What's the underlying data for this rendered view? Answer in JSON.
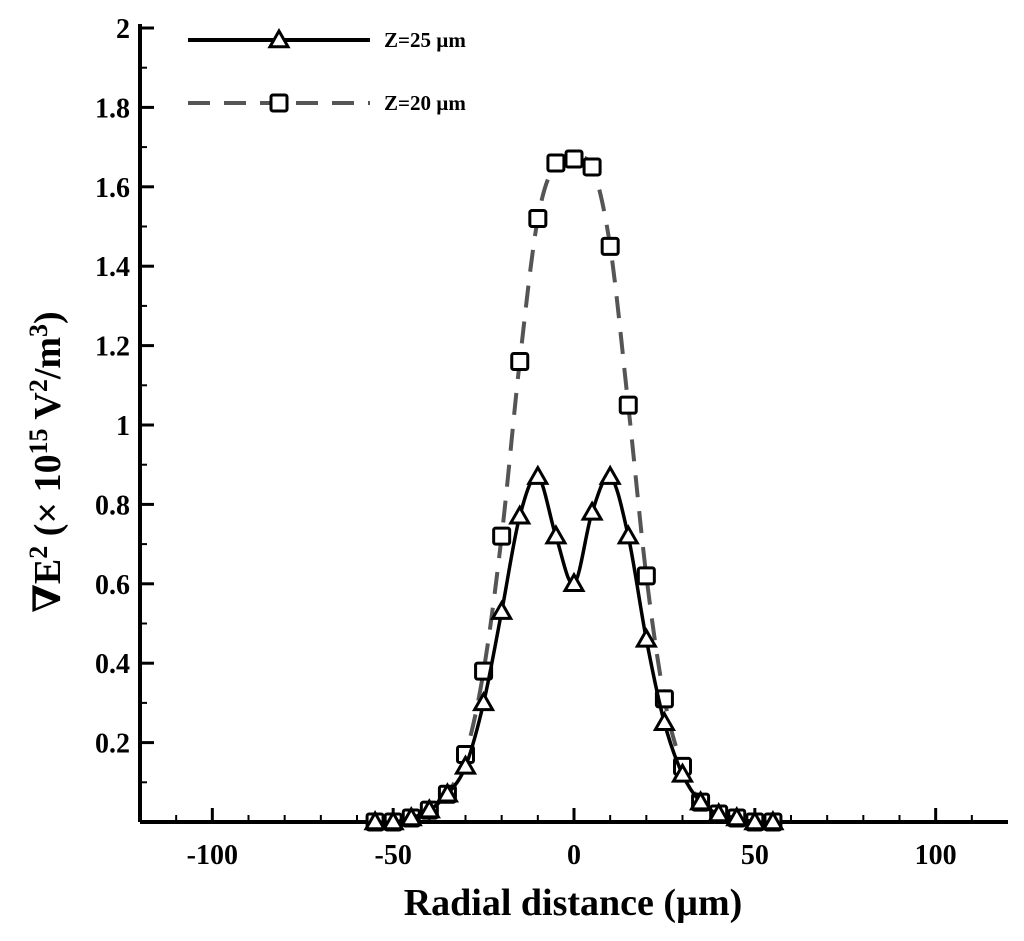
{
  "chart_data": {
    "type": "line",
    "xlabel": "Radial distance (µm)",
    "ylabel": {
      "base": "∇E",
      "base_sup": "2",
      "mid": " (× 10",
      "mid_sup": "15",
      "unit": " V",
      "unit_sup": "2",
      "unit_tail": "/m",
      "tail_sup": "3",
      "close": ")"
    },
    "xlim": [
      -120,
      120
    ],
    "ylim": [
      0,
      2
    ],
    "x_ticks": [
      -100,
      -50,
      0,
      50,
      100
    ],
    "x_tick_labels": [
      "-100",
      "-50",
      "0",
      "50",
      "100"
    ],
    "y_ticks": [
      0.2,
      0.4,
      0.6,
      0.8,
      1,
      1.2,
      1.4,
      1.6,
      1.8,
      2
    ],
    "y_tick_labels": [
      "0.2",
      "0.4",
      "0.6",
      "0.8",
      "1",
      "1.2",
      "1.4",
      "1.6",
      "1.8",
      "2"
    ],
    "grid": false,
    "legend_position": "top-left",
    "series": [
      {
        "name": "Z=25 µm",
        "line_style": "solid",
        "marker": "triangle",
        "color": "#000000",
        "x": [
          -55,
          -50,
          -45,
          -40,
          -35,
          -30,
          -25,
          -20,
          -15,
          -10,
          -5,
          0,
          5,
          10,
          15,
          20,
          25,
          30,
          35,
          40,
          45,
          50,
          55
        ],
        "y": [
          0.0,
          0.0,
          0.01,
          0.03,
          0.07,
          0.14,
          0.3,
          0.53,
          0.77,
          0.87,
          0.72,
          0.6,
          0.78,
          0.87,
          0.72,
          0.46,
          0.25,
          0.12,
          0.05,
          0.02,
          0.01,
          0.0,
          0.0
        ]
      },
      {
        "name": "Z=20 µm",
        "line_style": "dashed",
        "marker": "square",
        "color": "#555555",
        "x": [
          -55,
          -50,
          -45,
          -40,
          -35,
          -30,
          -25,
          -20,
          -15,
          -10,
          -5,
          0,
          5,
          10,
          15,
          20,
          25,
          30,
          35,
          40,
          45,
          50,
          55
        ],
        "y": [
          0.0,
          0.0,
          0.01,
          0.03,
          0.07,
          0.17,
          0.38,
          0.72,
          1.16,
          1.52,
          1.66,
          1.67,
          1.65,
          1.45,
          1.05,
          0.62,
          0.31,
          0.14,
          0.05,
          0.02,
          0.01,
          0.0,
          0.0
        ]
      }
    ]
  }
}
